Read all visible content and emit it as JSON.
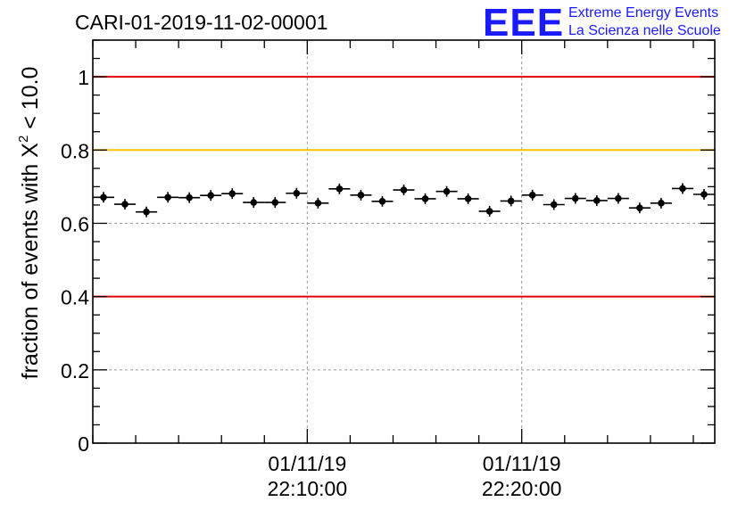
{
  "chart_data": {
    "type": "scatter",
    "title": "CARI-01-2019-11-02-00001",
    "ylabel": "fraction of events with X",
    "ylabel_superscript": "2",
    "ylabel_suffix": " < 10.0",
    "xlabel": "",
    "ylim": [
      0,
      1.1
    ],
    "yticks": [
      "0",
      "0.2",
      "0.4",
      "0.6",
      "0.8",
      "1"
    ],
    "ytick_values": [
      0,
      0.2,
      0.4,
      0.6,
      0.8,
      1.0
    ],
    "xlim_minutes": [
      0,
      29
    ],
    "xticks": [
      {
        "minute": 10,
        "date": "01/11/19",
        "time": "22:10:00"
      },
      {
        "minute": 20,
        "date": "01/11/19",
        "time": "22:20:00"
      }
    ],
    "grid": true,
    "reference_lines": [
      {
        "y": 1.0,
        "color": "#e00000"
      },
      {
        "y": 0.8,
        "color": "#ffc000"
      },
      {
        "y": 0.4,
        "color": "#e00000"
      }
    ],
    "series": [
      {
        "color": "#000000",
        "points": [
          0.671,
          0.652,
          0.631,
          0.671,
          0.67,
          0.676,
          0.681,
          0.657,
          0.657,
          0.682,
          0.655,
          0.694,
          0.677,
          0.66,
          0.691,
          0.667,
          0.687,
          0.667,
          0.633,
          0.661,
          0.677,
          0.651,
          0.668,
          0.662,
          0.668,
          0.642,
          0.655,
          0.695,
          0.679
        ]
      }
    ]
  },
  "logo": {
    "letters": "EEE",
    "line1": "Extreme Energy Events",
    "line2": "La Scienza nelle Scuole",
    "color": "#1a1aff"
  }
}
